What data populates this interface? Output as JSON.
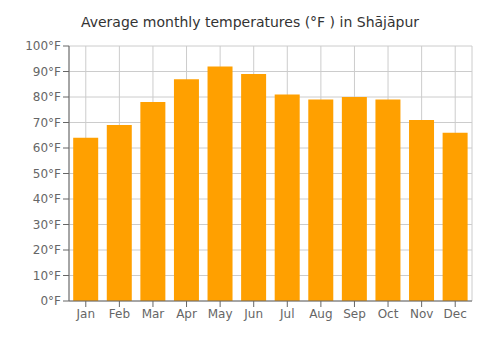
{
  "chart_data": {
    "type": "bar",
    "title": "Average monthly temperatures (°F ) in Shājāpur",
    "categories": [
      "Jan",
      "Feb",
      "Mar",
      "Apr",
      "May",
      "Jun",
      "Jul",
      "Aug",
      "Sep",
      "Oct",
      "Nov",
      "Dec"
    ],
    "values": [
      64,
      69,
      78,
      87,
      92,
      89,
      81,
      79,
      80,
      79,
      71,
      66
    ],
    "color": "#FFA000",
    "ylim": [
      0,
      100
    ],
    "yticks": [
      {
        "value": 0,
        "label": "0°F"
      },
      {
        "value": 10,
        "label": "10°F"
      },
      {
        "value": 20,
        "label": "20°F"
      },
      {
        "value": 30,
        "label": "30°F"
      },
      {
        "value": 40,
        "label": "40°F"
      },
      {
        "value": 50,
        "label": "50°F"
      },
      {
        "value": 60,
        "label": "60°F"
      },
      {
        "value": 70,
        "label": "70°F"
      },
      {
        "value": 80,
        "label": "80°F"
      },
      {
        "value": 90,
        "label": "90°F"
      },
      {
        "value": 100,
        "label": "100°F"
      }
    ],
    "grid": true
  }
}
